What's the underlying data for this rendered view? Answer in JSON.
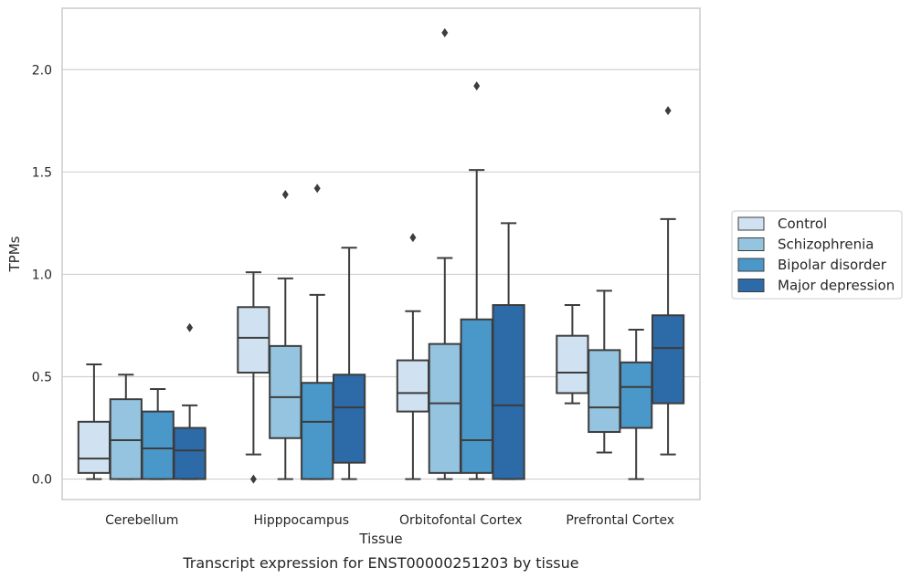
{
  "chart_data": {
    "type": "boxplot",
    "xlabel": "Tissue",
    "ylabel": "TPMs",
    "caption": "Transcript expression for ENST00000251203 by tissue",
    "ylim": [
      -0.1,
      2.3
    ],
    "yticks": [
      0.0,
      0.5,
      1.0,
      1.5,
      2.0
    ],
    "ytick_labels": [
      "0.0",
      "0.5",
      "1.0",
      "1.5",
      "2.0"
    ],
    "grid": "horizontal",
    "legend_position": "right",
    "categories": [
      "Cerebellum",
      "Hipppocampus",
      "Orbitofontal Cortex",
      "Prefrontal Cortex"
    ],
    "series": [
      {
        "name": "Control",
        "color": "#d0e1f2",
        "boxes": [
          {
            "whisker_low": 0.0,
            "q1": 0.03,
            "median": 0.1,
            "q3": 0.28,
            "whisker_high": 0.56,
            "outliers": []
          },
          {
            "whisker_low": 0.12,
            "q1": 0.52,
            "median": 0.69,
            "q3": 0.84,
            "whisker_high": 1.01,
            "outliers": [
              0.0
            ]
          },
          {
            "whisker_low": 0.0,
            "q1": 0.33,
            "median": 0.42,
            "q3": 0.58,
            "whisker_high": 0.82,
            "outliers": [
              1.18
            ]
          },
          {
            "whisker_low": 0.37,
            "q1": 0.42,
            "median": 0.52,
            "q3": 0.7,
            "whisker_high": 0.85,
            "outliers": []
          }
        ]
      },
      {
        "name": "Schizophrenia",
        "color": "#94c4df",
        "boxes": [
          {
            "whisker_low": 0.0,
            "q1": 0.0,
            "median": 0.19,
            "q3": 0.39,
            "whisker_high": 0.51,
            "outliers": []
          },
          {
            "whisker_low": 0.0,
            "q1": 0.2,
            "median": 0.4,
            "q3": 0.65,
            "whisker_high": 0.98,
            "outliers": [
              1.39
            ]
          },
          {
            "whisker_low": 0.0,
            "q1": 0.03,
            "median": 0.37,
            "q3": 0.66,
            "whisker_high": 1.08,
            "outliers": [
              2.18
            ]
          },
          {
            "whisker_low": 0.13,
            "q1": 0.23,
            "median": 0.35,
            "q3": 0.63,
            "whisker_high": 0.92,
            "outliers": []
          }
        ]
      },
      {
        "name": "Bipolar disorder",
        "color": "#4a98c9",
        "boxes": [
          {
            "whisker_low": 0.0,
            "q1": 0.0,
            "median": 0.15,
            "q3": 0.33,
            "whisker_high": 0.44,
            "outliers": []
          },
          {
            "whisker_low": 0.0,
            "q1": 0.0,
            "median": 0.28,
            "q3": 0.47,
            "whisker_high": 0.9,
            "outliers": [
              1.42
            ]
          },
          {
            "whisker_low": 0.0,
            "q1": 0.03,
            "median": 0.19,
            "q3": 0.78,
            "whisker_high": 1.51,
            "outliers": [
              1.92
            ]
          },
          {
            "whisker_low": 0.0,
            "q1": 0.25,
            "median": 0.45,
            "q3": 0.57,
            "whisker_high": 0.73,
            "outliers": []
          }
        ]
      },
      {
        "name": "Major depression",
        "color": "#2c6aa8",
        "boxes": [
          {
            "whisker_low": 0.0,
            "q1": 0.0,
            "median": 0.14,
            "q3": 0.25,
            "whisker_high": 0.36,
            "outliers": [
              0.74
            ]
          },
          {
            "whisker_low": 0.0,
            "q1": 0.08,
            "median": 0.35,
            "q3": 0.51,
            "whisker_high": 1.13,
            "outliers": []
          },
          {
            "whisker_low": 0.0,
            "q1": 0.0,
            "median": 0.36,
            "q3": 0.85,
            "whisker_high": 1.25,
            "outliers": []
          },
          {
            "whisker_low": 0.12,
            "q1": 0.37,
            "median": 0.64,
            "q3": 0.8,
            "whisker_high": 1.27,
            "outliers": [
              1.8
            ]
          }
        ]
      }
    ]
  }
}
